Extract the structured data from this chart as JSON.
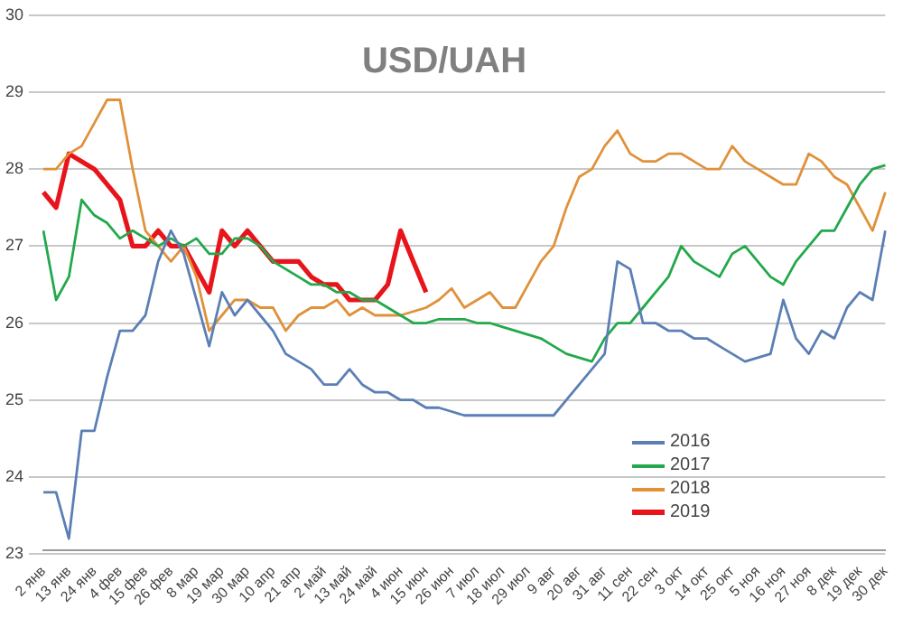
{
  "chart_data": {
    "type": "line",
    "title": "USD/UAH",
    "categories": [
      "2 янв",
      null,
      "13 янв",
      null,
      "24 янв",
      null,
      "4 фев",
      null,
      "15 фев",
      null,
      "26 фев",
      null,
      "8 мар",
      null,
      "19 мар",
      null,
      "30 мар",
      null,
      "10 апр",
      null,
      "21 апр",
      null,
      "2 май",
      null,
      "13 май",
      null,
      "24 май",
      null,
      "4 июн",
      null,
      "15 июн",
      null,
      "26 июн",
      null,
      "7 июл",
      null,
      "18 июл",
      null,
      "29 июл",
      null,
      "9 авг",
      null,
      "20 авг",
      null,
      "31 авг",
      null,
      "11 сен",
      null,
      "22 сен",
      null,
      "3 окт",
      null,
      "14 окт",
      null,
      "25 окт",
      null,
      "5 ноя",
      null,
      "16 ноя",
      null,
      "27 ноя",
      null,
      "8 дек",
      null,
      "19 дек",
      null,
      "30 дек"
    ],
    "series": [
      {
        "name": "2016",
        "color": "#5b7fb5",
        "values": [
          23.8,
          23.8,
          23.2,
          24.6,
          24.6,
          25.3,
          25.9,
          25.9,
          26.1,
          26.8,
          27.2,
          26.9,
          26.3,
          25.7,
          26.4,
          26.1,
          26.3,
          26.1,
          25.9,
          25.6,
          25.5,
          25.4,
          25.2,
          25.2,
          25.4,
          25.2,
          25.1,
          25.1,
          25.0,
          25.0,
          24.9,
          24.9,
          24.85,
          24.8,
          24.8,
          24.8,
          24.8,
          24.8,
          24.8,
          24.8,
          24.8,
          25.0,
          25.2,
          25.4,
          25.6,
          26.8,
          26.7,
          26.0,
          26.0,
          25.9,
          25.9,
          25.8,
          25.8,
          25.7,
          25.6,
          25.5,
          25.55,
          25.6,
          26.3,
          25.8,
          25.6,
          25.9,
          25.8,
          26.2,
          26.4,
          26.3,
          27.2
        ]
      },
      {
        "name": "2017",
        "color": "#23a84b",
        "values": [
          27.2,
          26.3,
          26.6,
          27.6,
          27.4,
          27.3,
          27.1,
          27.2,
          27.1,
          27.0,
          27.1,
          27.0,
          27.1,
          26.9,
          26.9,
          27.1,
          27.1,
          27.0,
          26.8,
          26.7,
          26.6,
          26.5,
          26.5,
          26.4,
          26.4,
          26.3,
          26.3,
          26.2,
          26.1,
          26.0,
          26.0,
          26.05,
          26.05,
          26.05,
          26.0,
          26.0,
          25.95,
          25.9,
          25.85,
          25.8,
          25.7,
          25.6,
          25.55,
          25.5,
          25.8,
          26.0,
          26.0,
          26.2,
          26.4,
          26.6,
          27.0,
          26.8,
          26.7,
          26.6,
          26.9,
          27.0,
          26.8,
          26.6,
          26.5,
          26.8,
          27.0,
          27.2,
          27.2,
          27.5,
          27.8,
          28.0,
          28.05
        ]
      },
      {
        "name": "2018",
        "color": "#e0913a",
        "values": [
          28.0,
          28.0,
          28.2,
          28.3,
          28.6,
          28.9,
          28.9,
          28.0,
          27.2,
          27.0,
          26.8,
          27.0,
          26.6,
          25.9,
          26.1,
          26.3,
          26.3,
          26.2,
          26.2,
          25.9,
          26.1,
          26.2,
          26.2,
          26.3,
          26.1,
          26.2,
          26.1,
          26.1,
          26.1,
          26.15,
          26.2,
          26.3,
          26.45,
          26.2,
          26.3,
          26.4,
          26.2,
          26.2,
          26.5,
          26.8,
          27.0,
          27.5,
          27.9,
          28.0,
          28.3,
          28.5,
          28.2,
          28.1,
          28.1,
          28.2,
          28.2,
          28.1,
          28.0,
          28.0,
          28.3,
          28.1,
          28.0,
          27.9,
          27.8,
          27.8,
          28.2,
          28.1,
          27.9,
          27.8,
          27.5,
          27.2,
          27.7
        ]
      },
      {
        "name": "2019",
        "color": "#e8141b",
        "values": [
          27.7,
          27.5,
          28.2,
          28.1,
          28.0,
          27.8,
          27.6,
          27.0,
          27.0,
          27.2,
          27.0,
          27.0,
          26.7,
          26.4,
          27.2,
          27.0,
          27.2,
          27.0,
          26.8,
          26.8,
          26.8,
          26.6,
          26.5,
          26.5,
          26.3,
          26.3,
          26.3,
          26.5,
          27.2,
          26.8,
          26.4,
          null,
          null,
          null,
          null,
          null,
          null,
          null,
          null,
          null,
          null,
          null,
          null,
          null,
          null,
          null,
          null,
          null,
          null,
          null,
          null,
          null,
          null,
          null,
          null,
          null,
          null,
          null,
          null,
          null,
          null,
          null,
          null,
          null,
          null,
          null,
          null
        ]
      }
    ],
    "ylim": [
      23,
      30
    ],
    "yticks": [
      23,
      24,
      25,
      26,
      27,
      28,
      29,
      30
    ],
    "grid": "y",
    "legend": "bottom right",
    "marker": "none",
    "line_style": "solid"
  }
}
